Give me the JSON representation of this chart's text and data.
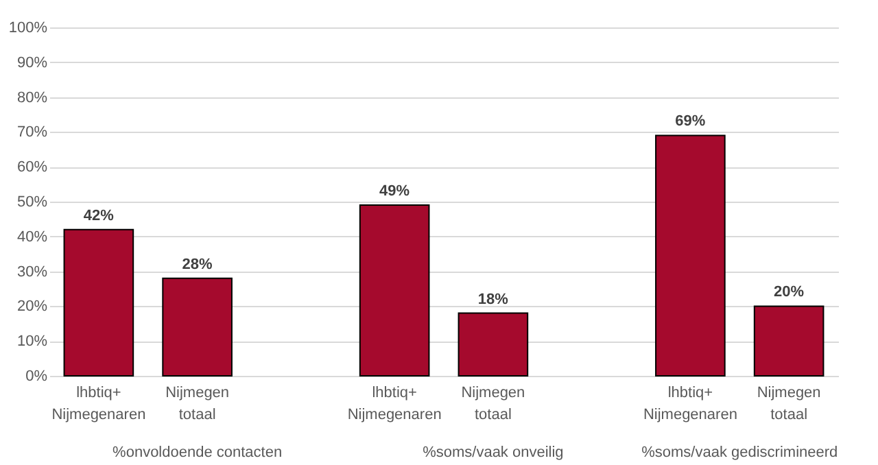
{
  "chart_data": {
    "type": "bar",
    "categories": [
      "lhbtiq+ Nijmegenaren",
      "Nijmegen totaal",
      null,
      "lhbtiq+ Nijmegenaren",
      "Nijmegen totaal",
      null,
      "lhbtiq+ Nijmegenaren",
      "Nijmegen totaal"
    ],
    "values": [
      42,
      28,
      null,
      49,
      18,
      null,
      69,
      20
    ],
    "value_labels": [
      "42%",
      "28%",
      null,
      "49%",
      "18%",
      null,
      "69%",
      "20%"
    ],
    "color": "#a50a2d",
    "ylim": [
      0,
      100
    ],
    "yticks": [
      {
        "value": 0,
        "label": "0%"
      },
      {
        "value": 10,
        "label": "10%"
      },
      {
        "value": 20,
        "label": "20%"
      },
      {
        "value": 30,
        "label": "30%"
      },
      {
        "value": 40,
        "label": "40%"
      },
      {
        "value": 50,
        "label": "50%"
      },
      {
        "value": 60,
        "label": "60%"
      },
      {
        "value": 70,
        "label": "70%"
      },
      {
        "value": 80,
        "label": "80%"
      },
      {
        "value": 90,
        "label": "90%"
      },
      {
        "value": 100,
        "label": "100%"
      }
    ],
    "grid": "y",
    "annotations": [
      "%onvoldoende contacten",
      "%soms/vaak onveilig",
      "%soms/vaak gediscrimineerd"
    ]
  }
}
